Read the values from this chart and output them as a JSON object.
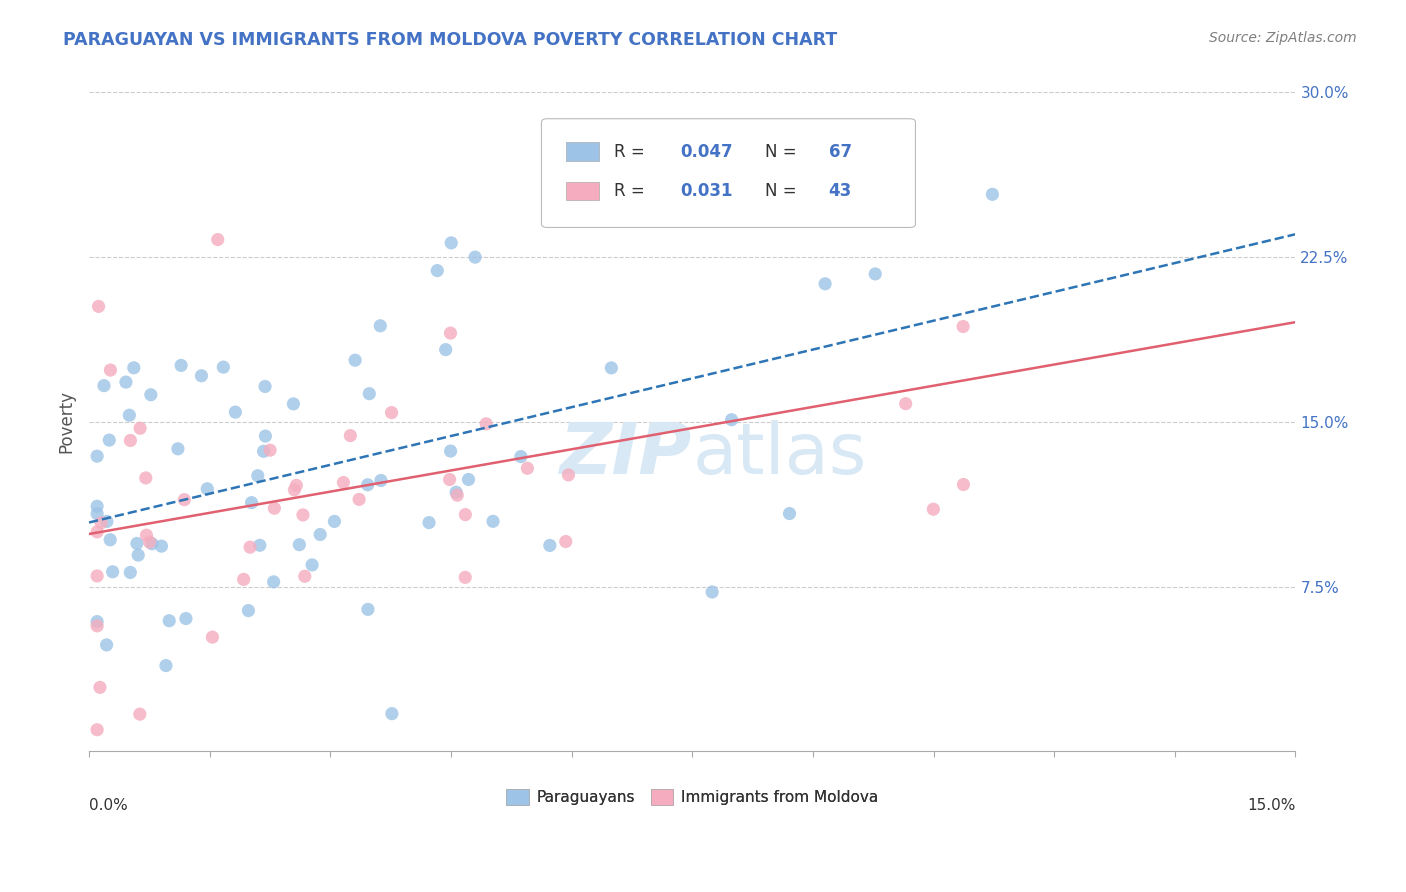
{
  "title": "PARAGUAYAN VS IMMIGRANTS FROM MOLDOVA POVERTY CORRELATION CHART",
  "source": "Source: ZipAtlas.com",
  "ylabel": "Poverty",
  "y_ticks": [
    0.075,
    0.15,
    0.225,
    0.3
  ],
  "y_tick_labels": [
    "7.5%",
    "15.0%",
    "22.5%",
    "30.0%"
  ],
  "xlim": [
    0.0,
    0.15
  ],
  "ylim": [
    0.0,
    0.3
  ],
  "legend_bottom": [
    "Paraguayans",
    "Immigrants from Moldova"
  ],
  "blue_R": "0.047",
  "blue_N": 67,
  "pink_R": "0.031",
  "pink_N": 43,
  "blue_color": "#9dc3e6",
  "pink_color": "#f4acbe",
  "blue_line_color": "#2e75b6",
  "pink_line_color": "#e06070",
  "watermark_color": "#d8e8f5",
  "title_color": "#4472c4",
  "source_color": "#808080",
  "background_color": "#ffffff",
  "grid_color": "#cccccc",
  "label_color": "#4472c4",
  "bottom_label_color": "#333333",
  "seed": 12
}
